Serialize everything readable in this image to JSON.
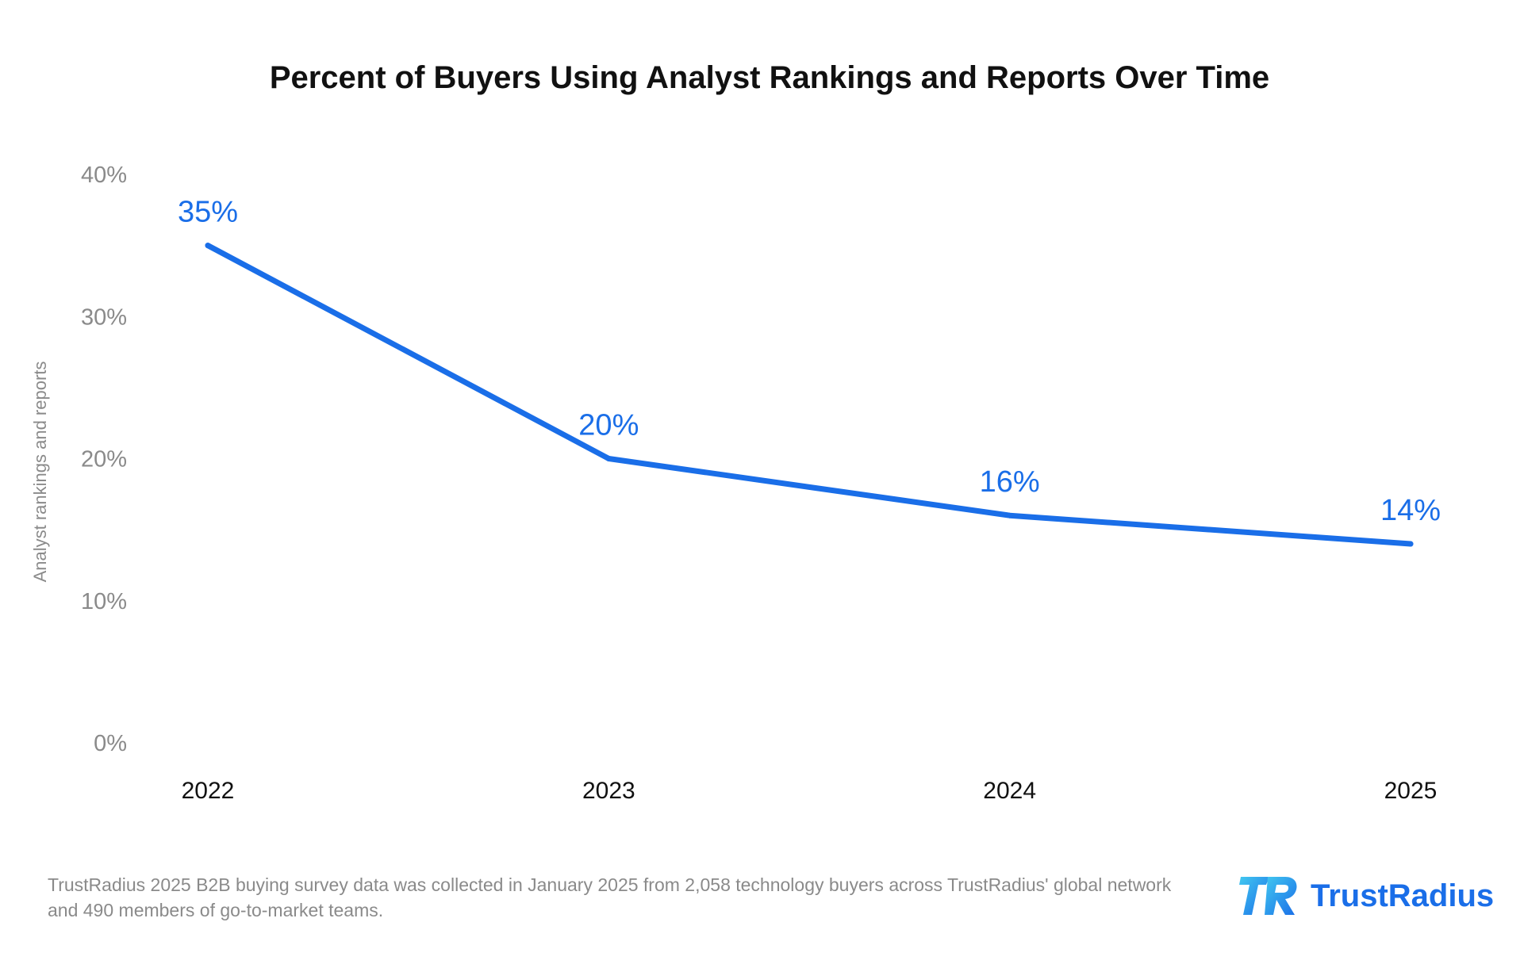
{
  "chart_data": {
    "type": "line",
    "title": "Percent of Buyers Using Analyst Rankings and Reports Over Time",
    "ylabel": "Analyst rankings and reports",
    "xlabel": "",
    "categories": [
      "2022",
      "2023",
      "2024",
      "2025"
    ],
    "series": [
      {
        "values": [
          35,
          20,
          16,
          14
        ],
        "data_labels": [
          "35%",
          "20%",
          "16%",
          "14%"
        ],
        "color": "#1a6ee8"
      }
    ],
    "yticks": [
      "0%",
      "10%",
      "20%",
      "30%",
      "40%"
    ],
    "ytick_values": [
      0,
      10,
      20,
      30,
      40
    ],
    "ylim": [
      0,
      40
    ],
    "grid": false,
    "legend": "none"
  },
  "footnote": {
    "line1": "TrustRadius 2025 B2B buying survey data was collected in January 2025 from 2,058 technology buyers across TrustRadius' global network",
    "line2": "and 490 members of go-to-market teams."
  },
  "brand": {
    "name": "TrustRadius",
    "logo_icon": "trustradius-tr-logo-icon",
    "color": "#1a6ee8"
  }
}
